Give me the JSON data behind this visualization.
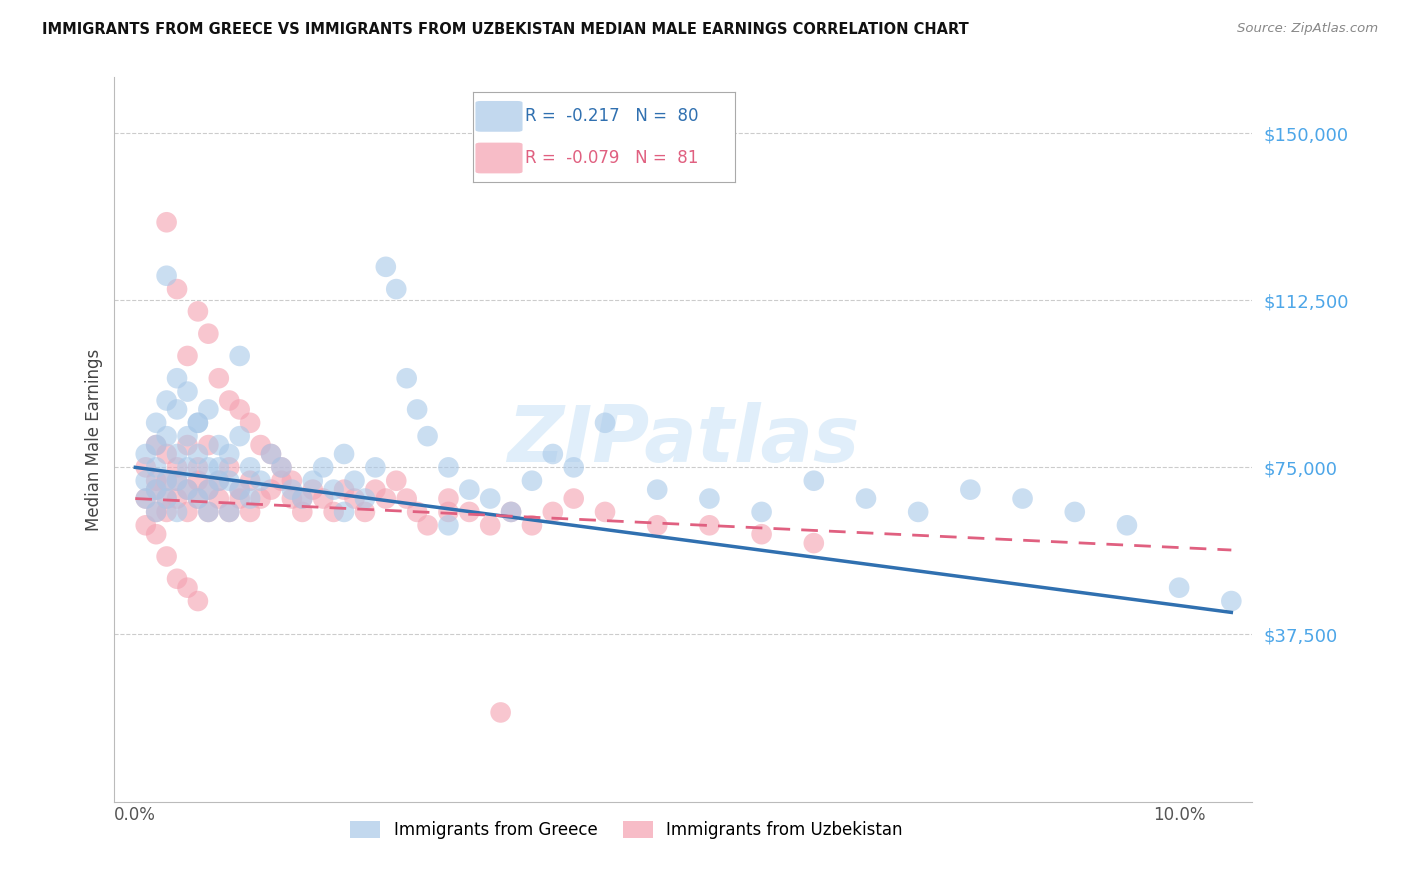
{
  "title": "IMMIGRANTS FROM GREECE VS IMMIGRANTS FROM UZBEKISTAN MEDIAN MALE EARNINGS CORRELATION CHART",
  "source": "Source: ZipAtlas.com",
  "ylabel": "Median Male Earnings",
  "ytick_labels": [
    "$37,500",
    "$75,000",
    "$112,500",
    "$150,000"
  ],
  "ytick_values": [
    37500,
    75000,
    112500,
    150000
  ],
  "ymin": 0,
  "ymax": 162500,
  "xmin": -0.002,
  "xmax": 0.107,
  "color_greece": "#a8c8e8",
  "color_uzbekistan": "#f4a0b0",
  "line_color_greece": "#3070b0",
  "line_color_uzbekistan": "#e06080",
  "watermark_text": "ZIPatlas",
  "greece_R": "-0.217",
  "greece_N": "80",
  "uzbekistan_R": "-0.079",
  "uzbekistan_N": "81",
  "greece_x": [
    0.001,
    0.001,
    0.001,
    0.002,
    0.002,
    0.002,
    0.002,
    0.002,
    0.003,
    0.003,
    0.003,
    0.003,
    0.004,
    0.004,
    0.004,
    0.004,
    0.005,
    0.005,
    0.005,
    0.006,
    0.006,
    0.006,
    0.007,
    0.007,
    0.007,
    0.008,
    0.008,
    0.009,
    0.009,
    0.01,
    0.01,
    0.011,
    0.011,
    0.012,
    0.013,
    0.014,
    0.015,
    0.016,
    0.017,
    0.018,
    0.019,
    0.02,
    0.021,
    0.022,
    0.023,
    0.024,
    0.025,
    0.026,
    0.027,
    0.028,
    0.03,
    0.032,
    0.034,
    0.036,
    0.038,
    0.04,
    0.042,
    0.045,
    0.05,
    0.055,
    0.06,
    0.065,
    0.07,
    0.075,
    0.08,
    0.085,
    0.09,
    0.095,
    0.1,
    0.105,
    0.003,
    0.004,
    0.005,
    0.006,
    0.007,
    0.008,
    0.009,
    0.01,
    0.02,
    0.03
  ],
  "greece_y": [
    72000,
    78000,
    68000,
    80000,
    75000,
    65000,
    85000,
    70000,
    90000,
    82000,
    72000,
    68000,
    88000,
    78000,
    65000,
    72000,
    82000,
    70000,
    75000,
    78000,
    68000,
    85000,
    75000,
    70000,
    65000,
    80000,
    72000,
    78000,
    65000,
    82000,
    70000,
    75000,
    68000,
    72000,
    78000,
    75000,
    70000,
    68000,
    72000,
    75000,
    70000,
    78000,
    72000,
    68000,
    75000,
    120000,
    115000,
    95000,
    88000,
    82000,
    75000,
    70000,
    68000,
    65000,
    72000,
    78000,
    75000,
    85000,
    70000,
    68000,
    65000,
    72000,
    68000,
    65000,
    70000,
    68000,
    65000,
    62000,
    48000,
    45000,
    118000,
    95000,
    92000,
    85000,
    88000,
    75000,
    72000,
    100000,
    65000,
    62000
  ],
  "uzbekistan_x": [
    0.001,
    0.001,
    0.001,
    0.002,
    0.002,
    0.002,
    0.002,
    0.003,
    0.003,
    0.003,
    0.003,
    0.004,
    0.004,
    0.004,
    0.005,
    0.005,
    0.005,
    0.006,
    0.006,
    0.006,
    0.007,
    0.007,
    0.007,
    0.008,
    0.008,
    0.009,
    0.009,
    0.01,
    0.01,
    0.011,
    0.011,
    0.012,
    0.013,
    0.014,
    0.015,
    0.016,
    0.017,
    0.018,
    0.019,
    0.02,
    0.021,
    0.022,
    0.023,
    0.024,
    0.025,
    0.026,
    0.027,
    0.028,
    0.03,
    0.032,
    0.034,
    0.036,
    0.038,
    0.04,
    0.042,
    0.045,
    0.05,
    0.055,
    0.06,
    0.065,
    0.003,
    0.004,
    0.005,
    0.006,
    0.007,
    0.008,
    0.009,
    0.01,
    0.011,
    0.012,
    0.013,
    0.014,
    0.015,
    0.016,
    0.002,
    0.003,
    0.004,
    0.005,
    0.006,
    0.03,
    0.035
  ],
  "uzbekistan_y": [
    68000,
    75000,
    62000,
    72000,
    80000,
    65000,
    70000,
    78000,
    68000,
    72000,
    65000,
    75000,
    68000,
    72000,
    80000,
    70000,
    65000,
    75000,
    68000,
    72000,
    80000,
    70000,
    65000,
    72000,
    68000,
    75000,
    65000,
    70000,
    68000,
    72000,
    65000,
    68000,
    70000,
    72000,
    68000,
    65000,
    70000,
    68000,
    65000,
    70000,
    68000,
    65000,
    70000,
    68000,
    72000,
    68000,
    65000,
    62000,
    68000,
    65000,
    62000,
    65000,
    62000,
    65000,
    68000,
    65000,
    62000,
    62000,
    60000,
    58000,
    130000,
    115000,
    100000,
    110000,
    105000,
    95000,
    90000,
    88000,
    85000,
    80000,
    78000,
    75000,
    72000,
    68000,
    60000,
    55000,
    50000,
    48000,
    45000,
    65000,
    20000
  ]
}
